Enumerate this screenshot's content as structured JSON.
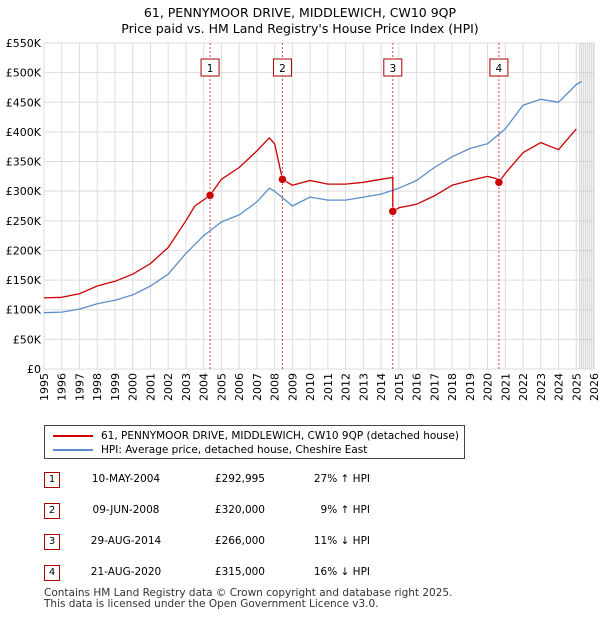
{
  "title_line1": "61, PENNYMOOR DRIVE, MIDDLEWICH, CW10 9QP",
  "title_line2": "Price paid vs. HM Land Registry's House Price Index (HPI)",
  "chart_data": {
    "type": "line",
    "title": "61, PENNYMOOR DRIVE, MIDDLEWICH, CW10 9QP — Price paid vs. HM Land Registry's House Price Index (HPI)",
    "xlabel": "",
    "ylabel": "",
    "xlim": [
      1995,
      2026
    ],
    "ylim": [
      0,
      550000
    ],
    "x_ticks": [
      1995,
      1996,
      1997,
      1998,
      1999,
      2000,
      2001,
      2002,
      2003,
      2004,
      2005,
      2006,
      2007,
      2008,
      2009,
      2010,
      2011,
      2012,
      2013,
      2014,
      2015,
      2016,
      2017,
      2018,
      2019,
      2020,
      2021,
      2022,
      2023,
      2024,
      2025,
      2026
    ],
    "y_ticks": [
      0,
      50000,
      100000,
      150000,
      200000,
      250000,
      300000,
      350000,
      400000,
      450000,
      500000,
      550000
    ],
    "y_tick_labels": [
      "£0",
      "£50K",
      "£100K",
      "£150K",
      "£200K",
      "£250K",
      "£300K",
      "£350K",
      "£400K",
      "£450K",
      "£500K",
      "£550K"
    ],
    "grid": true,
    "colors": {
      "property": "#cc0000",
      "hpi": "#5b8ec9",
      "marker_line": "#dd4444",
      "projection": "#cccccc"
    },
    "series": [
      {
        "name": "61, PENNYMOOR DRIVE, MIDDLEWICH, CW10 9QP (detached house)",
        "color": "#cc0000",
        "x": [
          1995.0,
          1996.0,
          1997.0,
          1998.0,
          1999.0,
          2000.0,
          2001.0,
          2002.0,
          2003.0,
          2003.5,
          2004.36,
          2004.36,
          2005.0,
          2006.0,
          2007.0,
          2007.7,
          2008.0,
          2008.44,
          2008.44,
          2009.0,
          2010.0,
          2011.0,
          2012.0,
          2013.0,
          2014.0,
          2014.66,
          2014.66,
          2015.0,
          2016.0,
          2017.0,
          2018.0,
          2019.0,
          2020.0,
          2020.64,
          2020.64,
          2021.0,
          2022.0,
          2023.0,
          2024.0,
          2025.0
        ],
        "values": [
          120000,
          121000,
          127000,
          140000,
          148000,
          160000,
          178000,
          205000,
          250000,
          275000,
          292995,
          292995,
          320000,
          340000,
          368000,
          390000,
          380000,
          320000,
          320000,
          310000,
          318000,
          312000,
          312000,
          315000,
          320000,
          323000,
          266000,
          272000,
          278000,
          292000,
          310000,
          318000,
          325000,
          320000,
          315000,
          330000,
          365000,
          382000,
          370000,
          405000
        ]
      },
      {
        "name": "HPI: Average price, detached house, Cheshire East",
        "color": "#5b8ec9",
        "x": [
          1995.0,
          1996.0,
          1997.0,
          1998.0,
          1999.0,
          2000.0,
          2001.0,
          2002.0,
          2003.0,
          2004.0,
          2005.0,
          2006.0,
          2007.0,
          2007.7,
          2008.0,
          2009.0,
          2010.0,
          2011.0,
          2012.0,
          2013.0,
          2014.0,
          2015.0,
          2016.0,
          2017.0,
          2018.0,
          2019.0,
          2020.0,
          2021.0,
          2022.0,
          2023.0,
          2024.0,
          2025.0,
          2025.3
        ],
        "values": [
          95000,
          96000,
          101000,
          110000,
          116000,
          125000,
          140000,
          160000,
          195000,
          225000,
          248000,
          260000,
          282000,
          305000,
          300000,
          275000,
          290000,
          285000,
          285000,
          290000,
          295000,
          305000,
          318000,
          340000,
          358000,
          372000,
          380000,
          405000,
          445000,
          455000,
          450000,
          480000,
          485000
        ]
      }
    ],
    "sale_markers": [
      {
        "label": "1",
        "x": 2004.36,
        "value": 292995
      },
      {
        "label": "2",
        "x": 2008.44,
        "value": 320000
      },
      {
        "label": "3",
        "x": 2014.66,
        "value": 266000
      },
      {
        "label": "4",
        "x": 2020.64,
        "value": 315000
      }
    ],
    "projection_start": 2025.2
  },
  "legend": {
    "property": "61, PENNYMOOR DRIVE, MIDDLEWICH, CW10 9QP (detached house)",
    "hpi": "HPI: Average price, detached house, Cheshire East"
  },
  "sales": [
    {
      "num": "1",
      "date": "10-MAY-2004",
      "price": "£292,995",
      "hpi": "27% ↑ HPI"
    },
    {
      "num": "2",
      "date": "09-JUN-2008",
      "price": "£320,000",
      "hpi": "9% ↑ HPI"
    },
    {
      "num": "3",
      "date": "29-AUG-2014",
      "price": "£266,000",
      "hpi": "11% ↓ HPI"
    },
    {
      "num": "4",
      "date": "21-AUG-2020",
      "price": "£315,000",
      "hpi": "16% ↓ HPI"
    }
  ],
  "footer": {
    "line1": "Contains HM Land Registry data © Crown copyright and database right 2025.",
    "line2": "This data is licensed under the Open Government Licence v3.0."
  }
}
